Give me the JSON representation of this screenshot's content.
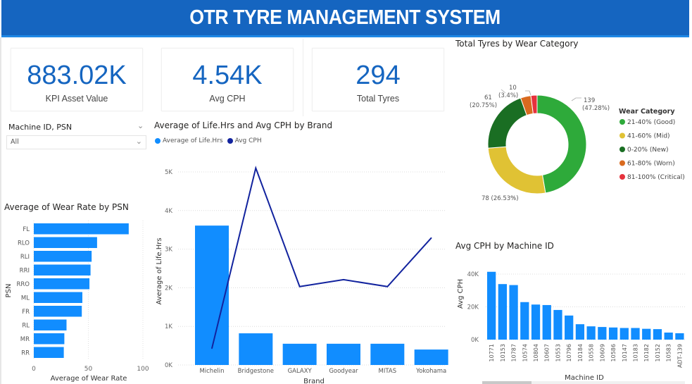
{
  "header": {
    "title": "OTR TYRE MANAGEMENT SYSTEM"
  },
  "colors": {
    "brand": "#1565c0",
    "bar": "#118dff",
    "line": "#12239e"
  },
  "kpis": [
    {
      "value": "883.02K",
      "label": "KPI Asset Value"
    },
    {
      "value": "4.54K",
      "label": "Avg CPH"
    },
    {
      "value": "294",
      "label": "Total Tyres"
    }
  ],
  "slicer": {
    "title": "Machine ID, PSN",
    "value": "All",
    "chevron": "chevron-down-icon"
  },
  "combo": {
    "title": "Average of Life.Hrs and Avg CPH by Brand",
    "legend": [
      "Average of Life.Hrs",
      "Avg CPH"
    ]
  },
  "wear": {
    "title": "Average of Wear Rate by PSN"
  },
  "donut": {
    "title": "Total Tyres by Wear Category",
    "legend_title": "Wear Category",
    "labels": {
      "good_n": "139",
      "good_p": "(47.28%)",
      "mid": "78 (26.53%)",
      "new_n": "61",
      "new_p": "(20.75%)",
      "worn_n": "10",
      "worn_p": "(3.4%)"
    }
  },
  "cph": {
    "title": "Avg CPH by Machine ID"
  },
  "chart_data": [
    {
      "type": "bar",
      "orientation": "horizontal",
      "title": "Average of Wear Rate by PSN",
      "xlabel": "Average of Wear Rate",
      "ylabel": "PSN",
      "categories": [
        "FL",
        "RLO",
        "RLI",
        "RRI",
        "RRO",
        "ML",
        "FR",
        "RL",
        "MR",
        "RR"
      ],
      "values": [
        87,
        58,
        53,
        52,
        51,
        44.5,
        44,
        30,
        28,
        27.5
      ],
      "xlim": [
        0,
        100
      ],
      "ticks": [
        "0",
        "50",
        "100"
      ],
      "grid": true
    },
    {
      "type": "bar+line",
      "title": "Average of Life.Hrs and Avg CPH by Brand",
      "xlabel": "Brand",
      "ylabel": "Average of Life.Hrs",
      "categories": [
        "Michelin",
        "Bridgestone",
        "GALAXY",
        "Goodyear",
        "MITAS",
        "Yokohama"
      ],
      "series": [
        {
          "name": "Average of Life.Hrs",
          "type": "bar",
          "values": [
            3610,
            820,
            550,
            550,
            550,
            400
          ]
        },
        {
          "name": "Avg CPH",
          "type": "line",
          "values": [
            430,
            5100,
            2030,
            2210,
            2030,
            3290
          ]
        }
      ],
      "ylim": [
        0,
        5000
      ],
      "ticks": [
        "0K",
        "1K",
        "2K",
        "3K",
        "4K",
        "5K"
      ],
      "legend": "top-left",
      "grid": true
    },
    {
      "type": "pie",
      "donut": true,
      "title": "Total Tyres by Wear Category",
      "categories": [
        "21-40% (Good)",
        "41-60% (Mid)",
        "0-20% (New)",
        "61-80% (Worn)",
        "81-100% (Critical)"
      ],
      "values": [
        139,
        78,
        61,
        10,
        6
      ],
      "colors": [
        "#2eaa3a",
        "#e0c234",
        "#1a6e23",
        "#d96a1f",
        "#e6323d"
      ],
      "legend": "right"
    },
    {
      "type": "bar",
      "title": "Avg CPH by Machine ID",
      "xlabel": "Machine ID",
      "ylabel": "Avg CPH",
      "categories": [
        "10771",
        "10153",
        "10787",
        "10574",
        "10804",
        "10607",
        "10553",
        "10796",
        "10184",
        "10558",
        "10609",
        "10586",
        "10147",
        "10183",
        "10182",
        "10152",
        "10583",
        "ADT-139"
      ],
      "values": [
        41400,
        33900,
        33300,
        22900,
        21400,
        21100,
        18100,
        14700,
        9400,
        8100,
        7700,
        7400,
        7100,
        7100,
        6600,
        6400,
        4300,
        3900
      ],
      "ylim": [
        0,
        40000
      ],
      "ticks": [
        "0K",
        "20K",
        "40K"
      ],
      "grid": true
    }
  ]
}
